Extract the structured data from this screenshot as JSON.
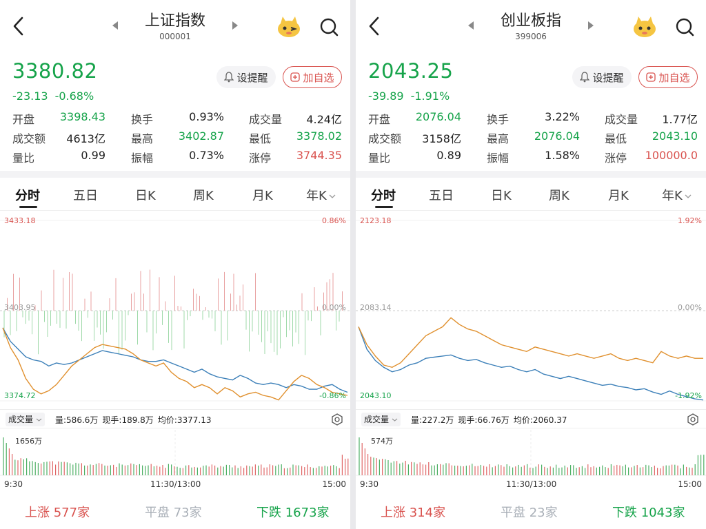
{
  "colors": {
    "up": "#d9534f",
    "down": "#16a34a",
    "price_line": "#3b7fb8",
    "avg_line": "#e0902e",
    "flat": "#aab0b8"
  },
  "icons": {
    "back": "chevron-left-icon",
    "prev": "triangle-left-icon",
    "next": "triangle-right-icon",
    "mascot": "mascot-icon",
    "search": "search-icon",
    "bell": "bell-icon",
    "add": "plus-square-icon",
    "gear": "gear-icon",
    "dropdown": "chevron-down-icon"
  },
  "panels": [
    {
      "name": "上证指数",
      "code": "000001",
      "price": "3380.82",
      "change": "-23.13",
      "change_pct": "-0.68%",
      "alert_label": "设提醒",
      "add_label": "加自选",
      "stats": [
        [
          {
            "label": "开盘",
            "value": "3398.43",
            "color": "down"
          },
          {
            "label": "换手",
            "value": "0.93%",
            "color": "none"
          },
          {
            "label": "成交量",
            "value": "4.24亿",
            "color": "none"
          }
        ],
        [
          {
            "label": "成交额",
            "value": "4613亿",
            "color": "none"
          },
          {
            "label": "最高",
            "value": "3402.87",
            "color": "down"
          },
          {
            "label": "最低",
            "value": "3378.02",
            "color": "down"
          }
        ],
        [
          {
            "label": "量比",
            "value": "0.99",
            "color": "none"
          },
          {
            "label": "振幅",
            "value": "0.73%",
            "color": "none"
          },
          {
            "label": "涨停",
            "value": "3744.35",
            "color": "up"
          }
        ]
      ],
      "tabs": [
        "分时",
        "五日",
        "日K",
        "周K",
        "月K",
        "年K"
      ],
      "active_tab": 0,
      "chart_data": {
        "type": "line",
        "y_top": "3433.18",
        "y_mid": "3403.95",
        "y_bottom": "3374.72",
        "pct_top": "0.86%",
        "pct_mid": "0.00%",
        "pct_bottom": "-0.86%",
        "ylim": [
          3374.72,
          3433.18
        ],
        "series": [
          {
            "values": [
              3398.4,
              3394.0,
              3391.5,
              3389.0,
              3388.0,
              3387.5,
              3386.0,
              3387.0,
              3386.5,
              3387.0,
              3388.0,
              3389.0,
              3390.0,
              3391.0,
              3390.5,
              3390.0,
              3389.5,
              3389.0,
              3388.0,
              3387.5,
              3387.5,
              3388.0,
              3387.0,
              3386.0,
              3385.0,
              3384.0,
              3385.0,
              3383.5,
              3382.5,
              3382.0,
              3381.5,
              3383.0,
              3382.0,
              3380.5,
              3380.0,
              3380.5,
              3380.0,
              3379.0,
              3380.0,
              3379.5,
              3378.5,
              3378.5,
              3379.5,
              3380.0,
              3378.5,
              3377.5
            ]
          },
          {
            "values": [
              3398.4,
              3392.0,
              3388.0,
              3382.0,
              3378.5,
              3377.0,
              3378.0,
              3380.0,
              3383.0,
              3386.0,
              3388.0,
              3390.0,
              3392.0,
              3393.0,
              3392.5,
              3392.0,
              3391.5,
              3390.0,
              3388.0,
              3387.0,
              3386.0,
              3387.0,
              3384.0,
              3382.0,
              3381.0,
              3379.0,
              3380.0,
              3379.0,
              3377.0,
              3379.0,
              3378.0,
              3376.0,
              3377.0,
              3377.5,
              3376.5,
              3376.0,
              3375.0,
              3378.0,
              3381.0,
              3383.0,
              3382.0,
              3380.0,
              3379.0,
              3377.5,
              3377.0,
              3376.5
            ]
          }
        ]
      },
      "info": {
        "dropdown": "成交量",
        "volume": "量:586.6万",
        "current": "现手:189.8万",
        "avg": "均价:3377.13"
      },
      "volume_max": "1656万",
      "time_labels": [
        "9:30",
        "11:30/13:00",
        "15:00"
      ],
      "breadth": {
        "up_label": "上涨",
        "up_count": "577家",
        "flat_label": "平盘",
        "flat_count": "73家",
        "down_label": "下跌",
        "down_count": "1673家"
      }
    },
    {
      "name": "创业板指",
      "code": "399006",
      "price": "2043.25",
      "change": "-39.89",
      "change_pct": "-1.91%",
      "alert_label": "设提醒",
      "add_label": "加自选",
      "stats": [
        [
          {
            "label": "开盘",
            "value": "2076.04",
            "color": "down"
          },
          {
            "label": "换手",
            "value": "3.22%",
            "color": "none"
          },
          {
            "label": "成交量",
            "value": "1.77亿",
            "color": "none"
          }
        ],
        [
          {
            "label": "成交额",
            "value": "3158亿",
            "color": "none"
          },
          {
            "label": "最高",
            "value": "2076.04",
            "color": "down"
          },
          {
            "label": "最低",
            "value": "2043.10",
            "color": "down"
          }
        ],
        [
          {
            "label": "量比",
            "value": "0.89",
            "color": "none"
          },
          {
            "label": "振幅",
            "value": "1.58%",
            "color": "none"
          },
          {
            "label": "涨停",
            "value": "100000.0",
            "color": "up"
          }
        ]
      ],
      "tabs": [
        "分时",
        "五日",
        "日K",
        "周K",
        "月K",
        "年K"
      ],
      "active_tab": 0,
      "chart_data": {
        "type": "line",
        "y_top": "2123.18",
        "y_mid": "2083.14",
        "y_bottom": "2043.10",
        "pct_top": "1.92%",
        "pct_mid": "0.00%",
        "pct_bottom": "-1.92%",
        "ylim": [
          2043.1,
          2123.18
        ],
        "series": [
          {
            "values": [
              2076.0,
              2066.0,
              2061.0,
              2058.0,
              2056.0,
              2057.0,
              2059.0,
              2060.0,
              2062.0,
              2062.5,
              2063.0,
              2063.5,
              2062.0,
              2061.0,
              2061.5,
              2060.0,
              2059.0,
              2058.0,
              2058.5,
              2057.0,
              2056.0,
              2057.0,
              2055.0,
              2054.0,
              2053.0,
              2054.0,
              2053.0,
              2052.0,
              2051.0,
              2050.0,
              2050.5,
              2049.5,
              2049.0,
              2048.0,
              2048.5,
              2047.0,
              2046.0,
              2047.5,
              2046.0,
              2045.0,
              2044.0,
              2043.5
            ]
          },
          {
            "values": [
              2076.0,
              2068.0,
              2063.0,
              2059.0,
              2058.0,
              2060.0,
              2064.0,
              2068.0,
              2072.0,
              2074.0,
              2076.0,
              2080.0,
              2077.0,
              2075.0,
              2074.0,
              2072.0,
              2070.0,
              2068.0,
              2067.0,
              2066.0,
              2065.0,
              2067.0,
              2066.0,
              2065.0,
              2064.0,
              2063.0,
              2064.0,
              2063.0,
              2062.0,
              2063.0,
              2064.0,
              2062.0,
              2061.0,
              2062.0,
              2061.0,
              2060.0,
              2065.0,
              2063.0,
              2062.0,
              2063.0,
              2062.0,
              2062.0
            ]
          }
        ]
      },
      "info": {
        "dropdown": "成交量",
        "volume": "量:227.2万",
        "current": "现手:66.76万",
        "avg": "均价:2060.37"
      },
      "volume_max": "574万",
      "time_labels": [
        "9:30",
        "11:30/13:00",
        "15:00"
      ],
      "breadth": {
        "up_label": "上涨",
        "up_count": "314家",
        "flat_label": "平盘",
        "flat_count": "23家",
        "down_label": "下跌",
        "down_count": "1043家"
      }
    }
  ]
}
